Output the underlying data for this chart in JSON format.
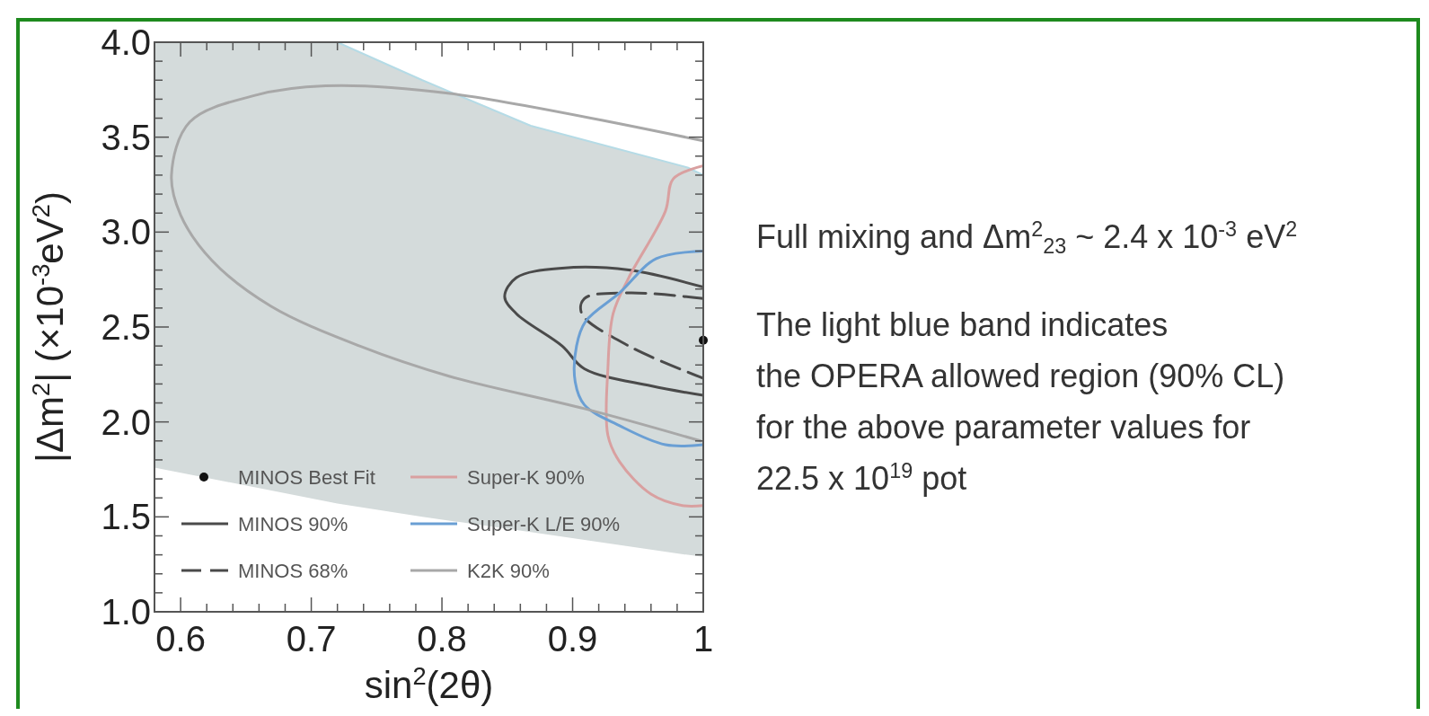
{
  "chart_data": {
    "type": "line",
    "xlabel": "sin$^{2}$(2θ)",
    "ylabel": "|Δm$^{2}$| (×10$^{-3}$eV$^{2}$)",
    "xlim": [
      0.58,
      1.0
    ],
    "ylim": [
      1.0,
      4.0
    ],
    "xticks": [
      {
        "value": 0.58,
        "label": null
      },
      0.6,
      {
        "value": 0.62,
        "label": null
      },
      {
        "value": 0.64,
        "label": null
      },
      {
        "value": 0.66,
        "label": null
      },
      {
        "value": 0.68,
        "label": null
      },
      0.7,
      {
        "value": 0.72,
        "label": null
      },
      {
        "value": 0.74,
        "label": null
      },
      {
        "value": 0.76,
        "label": null
      },
      {
        "value": 0.78,
        "label": null
      },
      0.8,
      {
        "value": 0.82,
        "label": null
      },
      {
        "value": 0.84,
        "label": null
      },
      {
        "value": 0.86,
        "label": null
      },
      {
        "value": 0.88,
        "label": null
      },
      0.9,
      {
        "value": 0.92,
        "label": null
      },
      {
        "value": 0.94,
        "label": null
      },
      {
        "value": 0.96,
        "label": null
      },
      {
        "value": 0.98,
        "label": null
      },
      1
    ],
    "yticks": [
      {
        "value": 1,
        "label": "1.0"
      },
      {
        "value": 1.1,
        "label": null
      },
      {
        "value": 1.2,
        "label": null
      },
      {
        "value": 1.3,
        "label": null
      },
      {
        "value": 1.4,
        "label": null
      },
      1.5,
      {
        "value": 1.6,
        "label": null
      },
      {
        "value": 1.7,
        "label": null
      },
      {
        "value": 1.8,
        "label": null
      },
      {
        "value": 1.9,
        "label": null
      },
      {
        "value": 2,
        "label": "2.0"
      },
      {
        "value": 2.1,
        "label": null
      },
      {
        "value": 2.2,
        "label": null
      },
      {
        "value": 2.3,
        "label": null
      },
      {
        "value": 2.4,
        "label": null
      },
      2.5,
      {
        "value": 2.6,
        "label": null
      },
      {
        "value": 2.7,
        "label": null
      },
      {
        "value": 2.8,
        "label": null
      },
      {
        "value": 2.9,
        "label": null
      },
      {
        "value": 3,
        "label": "3.0"
      },
      {
        "value": 3.1,
        "label": null
      },
      {
        "value": 3.2,
        "label": null
      },
      {
        "value": 3.3,
        "label": null
      },
      {
        "value": 3.4,
        "label": null
      },
      3.5,
      {
        "value": 3.6,
        "label": null
      },
      {
        "value": 3.7,
        "label": null
      },
      {
        "value": 3.8,
        "label": null
      },
      {
        "value": 3.9,
        "label": null
      },
      {
        "value": 4,
        "label": "4.0"
      }
    ],
    "grid": false,
    "legend": "bottom left",
    "series": [
      {
        "color": "#b5dbe6",
        "line_style": "solid",
        "x": [
          0.58,
          0.72,
          0.785,
          0.868,
          0.988,
          1.0
        ],
        "values": [
          4.0,
          4.0,
          3.8,
          3.56,
          3.34,
          3.3
        ],
        "lower": [
          1.76,
          1.57,
          1.5,
          1.42,
          1.3,
          1.29
        ],
        "upper": [
          4.0,
          4.0,
          3.8,
          3.56,
          3.34,
          3.3
        ]
      },
      {
        "name": "MINOS Best Fit",
        "type": "scatter",
        "color": "#111111",
        "marker": "circle",
        "x": [
          1.0
        ],
        "values": [
          2.43
        ]
      },
      {
        "name": "MINOS 90%",
        "color": "#4a4a4a",
        "line_style": "solid",
        "x": [
          1.0,
          0.943,
          0.892,
          0.857,
          0.848,
          0.857,
          0.892,
          0.909,
          0.96,
          1.0
        ],
        "values": [
          2.71,
          2.8,
          2.81,
          2.76,
          2.66,
          2.57,
          2.4,
          2.28,
          2.19,
          2.14
        ]
      },
      {
        "name": "MINOS 68%",
        "color": "#4a4a4a",
        "line_style": "dashed",
        "x": [
          1.0,
          0.943,
          0.909,
          0.907,
          0.943,
          1.0
        ],
        "values": [
          2.65,
          2.68,
          2.65,
          2.57,
          2.4,
          2.23
        ]
      },
      {
        "name": "Super-K 90%",
        "color": "#d9a0a0",
        "line_style": "solid",
        "x": [
          1.0,
          0.977,
          0.971,
          0.943,
          0.931,
          0.927,
          0.927,
          0.936,
          0.96,
          0.984,
          1.0
        ],
        "values": [
          3.35,
          3.28,
          3.11,
          2.76,
          2.57,
          2.28,
          1.93,
          1.79,
          1.62,
          1.56,
          1.56
        ]
      },
      {
        "name": "Super-K L/E 90%",
        "color": "#6a9fd4",
        "line_style": "solid",
        "x": [
          1.0,
          0.964,
          0.936,
          0.91,
          0.903,
          0.902,
          0.909,
          0.936,
          0.971,
          1.0
        ],
        "values": [
          2.9,
          2.86,
          2.68,
          2.53,
          2.4,
          2.21,
          2.09,
          1.98,
          1.88,
          1.88
        ]
      },
      {
        "name": "K2K 90%",
        "color": "#a8a8a8",
        "line_style": "solid",
        "x": [
          1.0,
          0.806,
          0.711,
          0.657,
          0.607,
          0.593,
          0.6,
          0.624,
          0.669,
          0.737,
          0.806,
          0.909,
          0.998
        ],
        "values": [
          3.48,
          3.73,
          3.77,
          3.72,
          3.58,
          3.3,
          3.09,
          2.85,
          2.61,
          2.4,
          2.24,
          2.07,
          1.9
        ]
      }
    ],
    "annotations": [
      "Full mixing and Δm$^{2}$$_{23}$ ~ 2.4 x 10$^{-3}$ eV$^{2}$",
      "The light blue band indicates\nthe OPERA allowed region (90% CL)\nfor the above parameter values for\n22.5 x 10$^{19}$ pot"
    ]
  }
}
